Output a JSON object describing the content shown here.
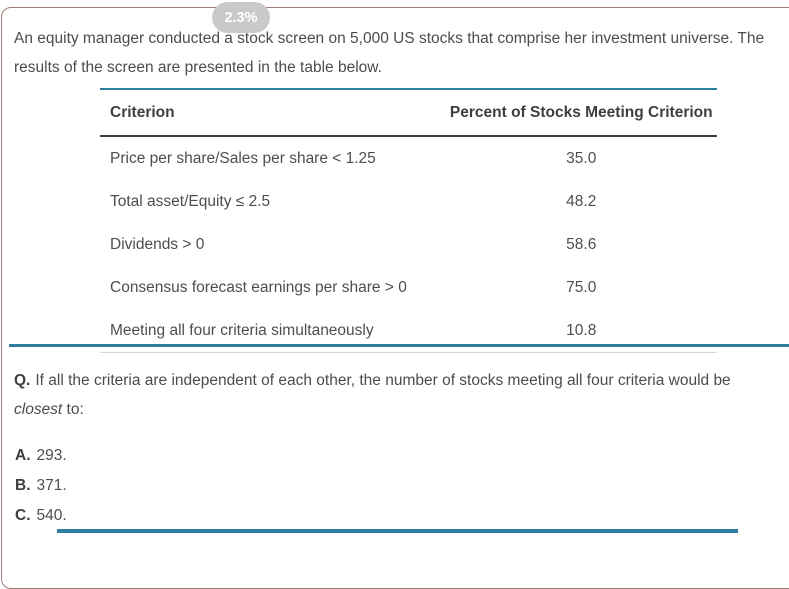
{
  "badge": {
    "label": "2.3%"
  },
  "intro": {
    "line1": "An equity manager conducted a stock screen on 5,000 US stocks that comprise her investment universe. The",
    "line2": "results of the screen are presented in the table below."
  },
  "table": {
    "headers": {
      "criterion": "Criterion",
      "percent": "Percent of Stocks Meeting Criterion"
    },
    "rows": [
      {
        "criterion": "Price per share/Sales per share < 1.25",
        "percent": "35.0"
      },
      {
        "criterion": "Total asset/Equity ≤ 2.5",
        "percent": "48.2"
      },
      {
        "criterion": "Dividends > 0",
        "percent": "58.6"
      },
      {
        "criterion": "Consensus forecast earnings per share > 0",
        "percent": "75.0"
      },
      {
        "criterion": "Meeting all four criteria simultaneously",
        "percent": "10.8"
      }
    ]
  },
  "question": {
    "label": "Q.",
    "text": "If all the criteria are independent of each other, the number of stocks meeting all four criteria would be",
    "emphasis": "closest",
    "suffix": " to:"
  },
  "options": [
    {
      "letter": "A.",
      "text": "293."
    },
    {
      "letter": "B.",
      "text": "371."
    },
    {
      "letter": "C.",
      "text": "540."
    }
  ],
  "colors": {
    "accent_teal": "#2d7f9d",
    "panel_border_rose": "#9c7d75",
    "badge_gray": "#c9c9c9",
    "header_rule_dark": "#3c3c3c"
  }
}
